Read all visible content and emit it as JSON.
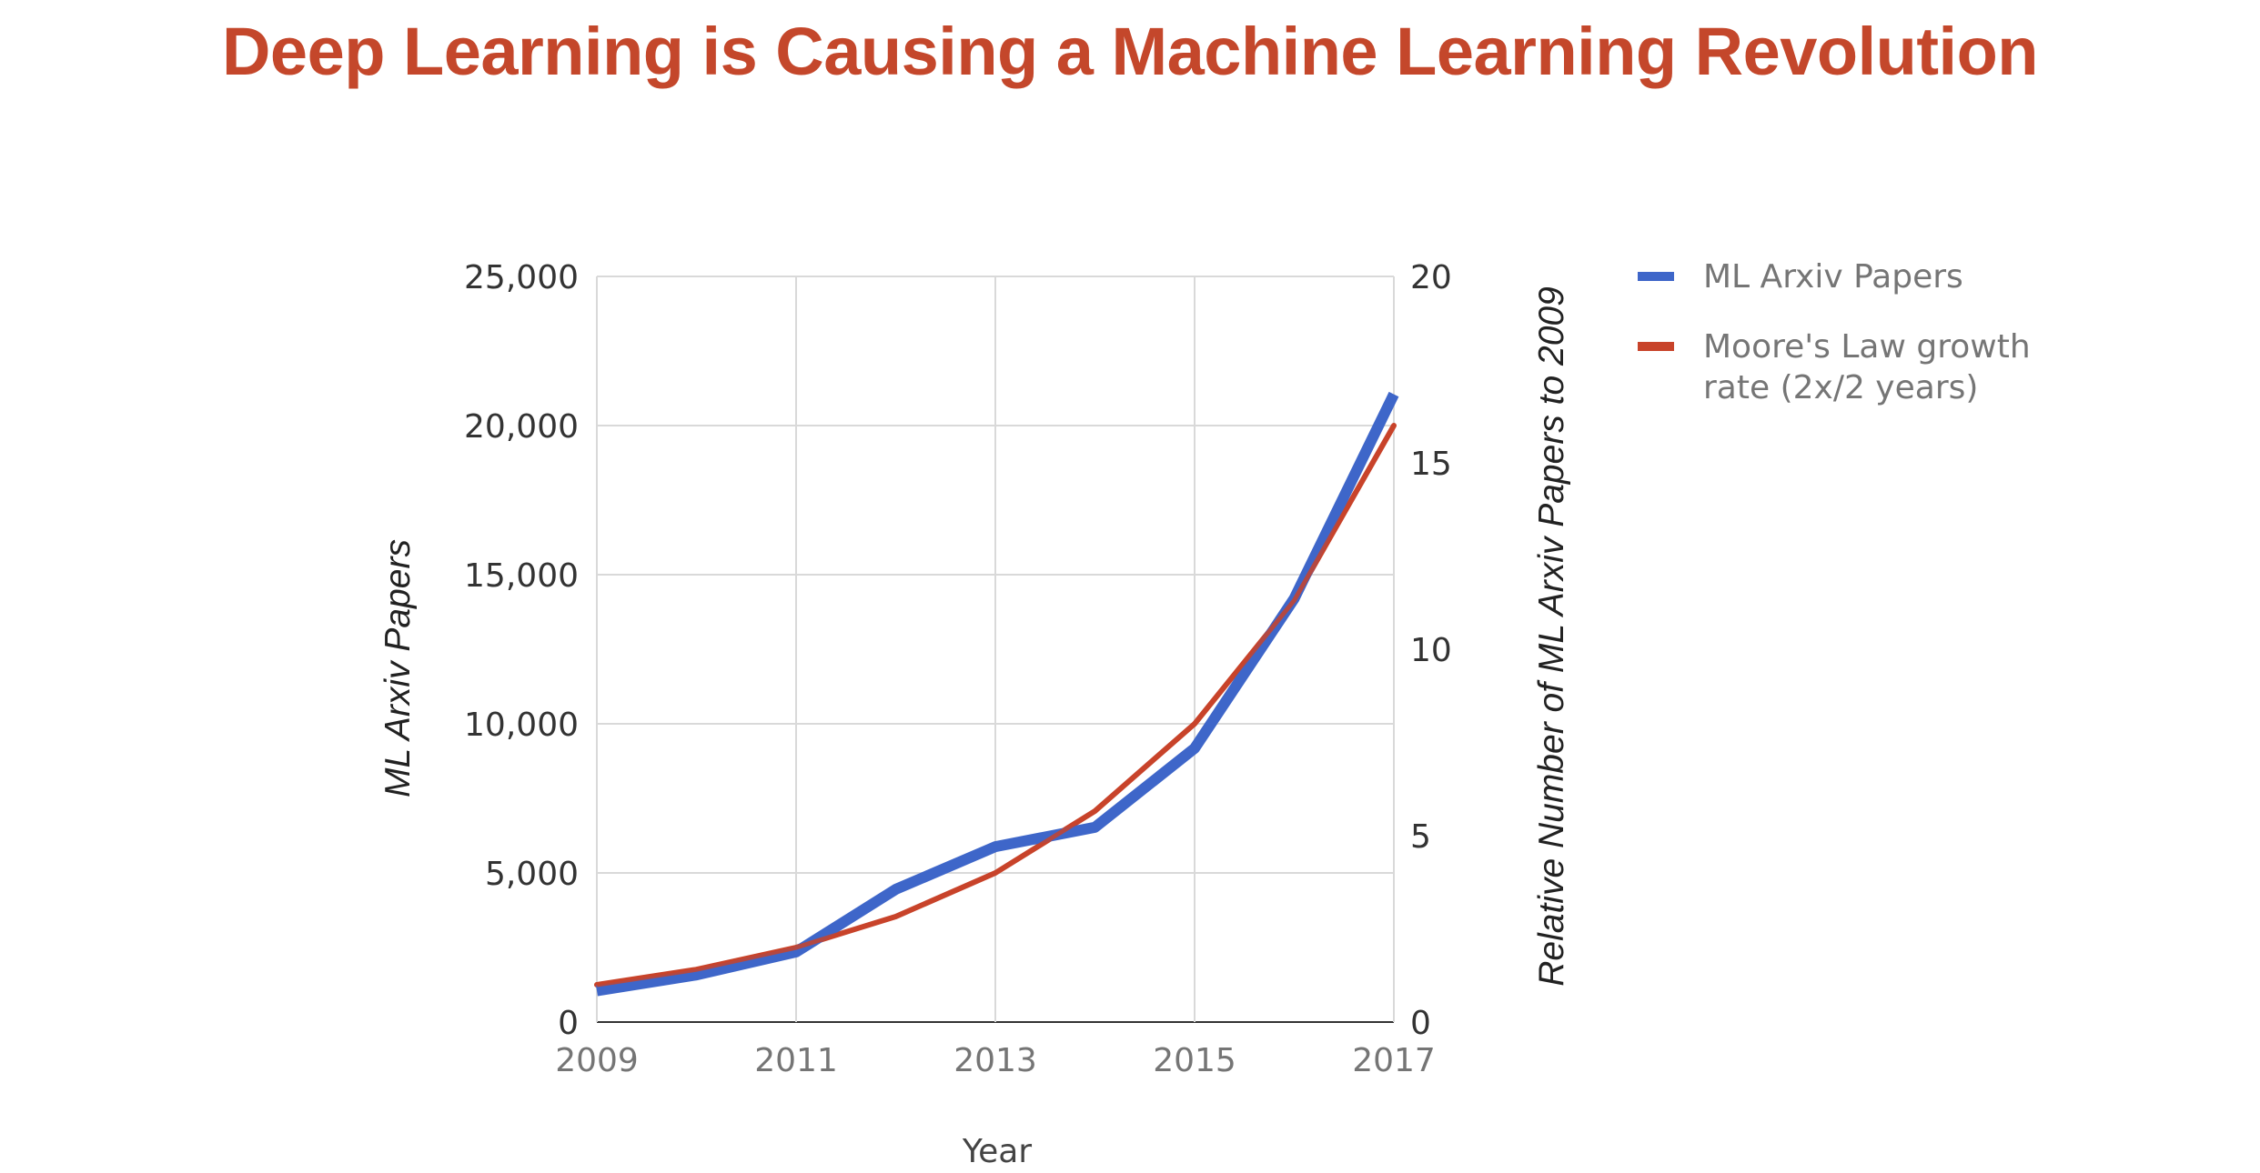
{
  "title": "Deep Learning is Causing a Machine Learning Revolution",
  "colors": {
    "title": "#c4472b",
    "ml_papers": "#3e66c9",
    "moores_law": "#c8432a",
    "grid": "#d9d9d9"
  },
  "chart_data": {
    "type": "line",
    "x": [
      2009,
      2010,
      2011,
      2012,
      2013,
      2014,
      2015,
      2016,
      2017
    ],
    "xticks": [
      "2009",
      "2011",
      "2013",
      "2015",
      "2017"
    ],
    "xlim": [
      2009,
      2017
    ],
    "xlabel": "Year",
    "ylabel": "ML Arxiv Papers",
    "ylim": [
      0,
      25000
    ],
    "yticks": [
      "0",
      "5,000",
      "10,000",
      "15,000",
      "20,000",
      "25,000"
    ],
    "ylabel_right": "Relative Number of ML Arxiv Papers  to 2009",
    "ylim_right": [
      0,
      20
    ],
    "yticks_right": [
      "0",
      "5",
      "10",
      "15",
      "20"
    ],
    "grid": true,
    "legend_position": "right",
    "series": [
      {
        "name": "ML Arxiv Papers",
        "axis": "left",
        "x": [
          2009,
          2010,
          2011,
          2012,
          2013,
          2014,
          2015,
          2016,
          2017
        ],
        "values": [
          1050,
          1580,
          2350,
          4450,
          5880,
          6530,
          9180,
          14200,
          21050
        ]
      },
      {
        "name": "Moore's Law growth",
        "name_line2": "rate (2x/2 years)",
        "axis": "right",
        "x": [
          2009,
          2010,
          2011,
          2012,
          2013,
          2014,
          2015,
          2016,
          2017
        ],
        "values": [
          1.0,
          1.41,
          2.0,
          2.83,
          4.0,
          5.66,
          8.0,
          11.31,
          16.0
        ]
      }
    ]
  }
}
